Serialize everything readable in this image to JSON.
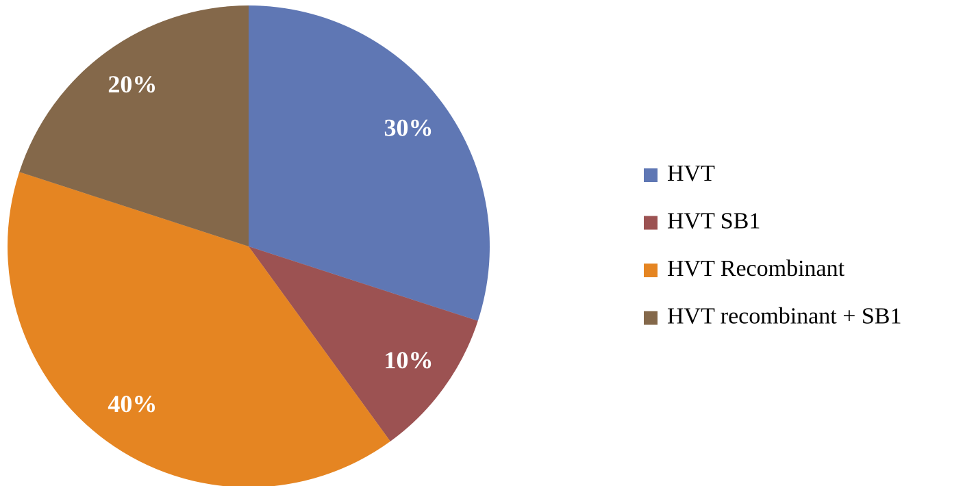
{
  "chart_data": {
    "type": "pie",
    "categories": [
      "HVT",
      "HVT SB1",
      "HVT Recombinant",
      "HVT recombinant + SB1"
    ],
    "values": [
      30,
      10,
      40,
      20
    ],
    "value_labels": [
      "30%",
      "10%",
      "40%",
      "20%"
    ],
    "colors": [
      "#5f77b4",
      "#9c5252",
      "#e58522",
      "#84684a"
    ],
    "legend": "right"
  }
}
